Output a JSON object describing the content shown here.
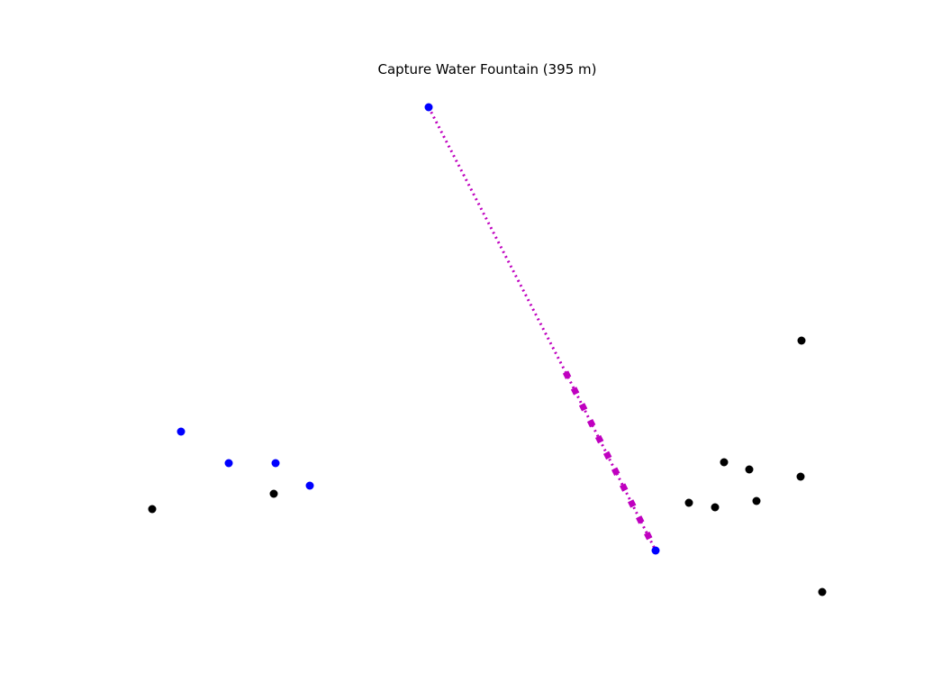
{
  "title": "Capture Water Fountain (395 m)",
  "colors": {
    "ally": "#0000ff",
    "enemy": "#000000",
    "path": "#bf00bf"
  },
  "chart_data": {
    "type": "scatter",
    "title": "Capture Water Fountain (395 m)",
    "series": [
      {
        "role": "ally-units",
        "color": "#0000ff",
        "points": [
          [
            476,
            119
          ],
          [
            201,
            479
          ],
          [
            254,
            514
          ],
          [
            306,
            514
          ],
          [
            344,
            539
          ],
          [
            728,
            611
          ]
        ]
      },
      {
        "role": "enemy-units",
        "color": "#000000",
        "points": [
          [
            169,
            565
          ],
          [
            304,
            548
          ],
          [
            890,
            378
          ],
          [
            804,
            513
          ],
          [
            832,
            521
          ],
          [
            889,
            529
          ],
          [
            765,
            558
          ],
          [
            794,
            563
          ],
          [
            840,
            556
          ],
          [
            913,
            657
          ]
        ]
      }
    ],
    "route": {
      "color": "#bf00bf",
      "from": [
        476,
        119
      ],
      "via": [
        628,
        413
      ],
      "to": [
        728,
        611
      ]
    }
  }
}
